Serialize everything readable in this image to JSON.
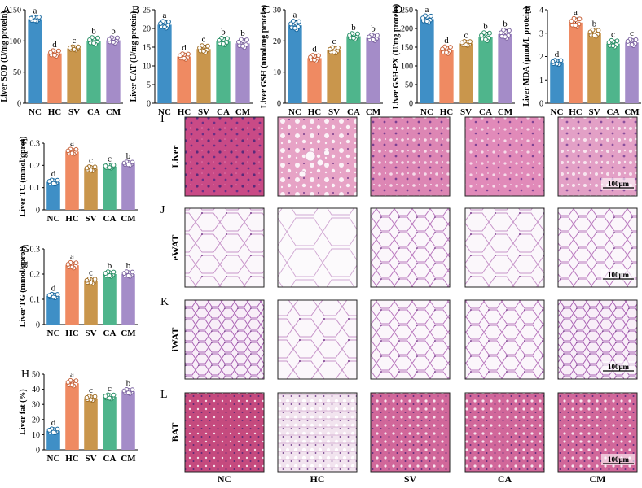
{
  "groups": [
    "NC",
    "HC",
    "SV",
    "CA",
    "CM"
  ],
  "group_colors": [
    "#3f8fc6",
    "#ef8a62",
    "#c9964c",
    "#4fb58c",
    "#a48cc8"
  ],
  "chart_data": [
    {
      "panel_label": "A",
      "type": "bar",
      "ylabel": "Liver SOD (U/mg protein)",
      "ylim": [
        0,
        150
      ],
      "yticks": [
        0,
        50,
        100,
        150
      ],
      "categories": [
        "NC",
        "HC",
        "SV",
        "CA",
        "CM"
      ],
      "values": [
        135,
        80,
        88,
        100,
        101
      ],
      "errors": [
        4,
        5,
        3,
        6,
        5
      ],
      "letters": [
        "a",
        "d",
        "c",
        "b",
        "b"
      ]
    },
    {
      "panel_label": "B",
      "type": "bar",
      "ylabel": "Liver CAT (U/mg protein)",
      "ylim": [
        0,
        25
      ],
      "yticks": [
        0,
        5,
        10,
        15,
        20,
        25
      ],
      "categories": [
        "NC",
        "HC",
        "SV",
        "CA",
        "CM"
      ],
      "values": [
        21,
        12.5,
        14.5,
        16.5,
        16
      ],
      "errors": [
        1,
        0.8,
        1,
        1,
        1.2
      ],
      "letters": [
        "a",
        "d",
        "c",
        "b",
        "b"
      ]
    },
    {
      "panel_label": "C",
      "type": "bar",
      "ylabel": "Liver GSH (nmol/mg protein)",
      "ylim": [
        0,
        30
      ],
      "yticks": [
        0,
        10,
        20,
        30
      ],
      "categories": [
        "NC",
        "HC",
        "SV",
        "CA",
        "CM"
      ],
      "values": [
        25,
        14.5,
        17,
        21.5,
        21
      ],
      "errors": [
        1.5,
        1,
        1,
        1,
        1
      ],
      "letters": [
        "a",
        "d",
        "c",
        "b",
        "b"
      ]
    },
    {
      "panel_label": "D",
      "type": "bar",
      "ylabel": "Liver GSH-PX (U/mg protein)",
      "ylim": [
        0,
        250
      ],
      "yticks": [
        0,
        50,
        100,
        150,
        200,
        250
      ],
      "categories": [
        "NC",
        "HC",
        "SV",
        "CA",
        "CM"
      ],
      "values": [
        225,
        142,
        160,
        178,
        185
      ],
      "errors": [
        10,
        10,
        6,
        12,
        12
      ],
      "letters": [
        "a",
        "d",
        "c",
        "b",
        "b"
      ]
    },
    {
      "panel_label": "E",
      "type": "bar",
      "ylabel": "Liver MDA (µmol/L protein)",
      "ylim": [
        0,
        4
      ],
      "yticks": [
        0,
        1,
        2,
        3,
        4
      ],
      "categories": [
        "NC",
        "HC",
        "SV",
        "CA",
        "CM"
      ],
      "values": [
        1.75,
        3.45,
        3.0,
        2.55,
        2.6
      ],
      "errors": [
        0.1,
        0.2,
        0.15,
        0.15,
        0.15
      ],
      "letters": [
        "d",
        "a",
        "b",
        "c",
        "c"
      ]
    },
    {
      "panel_label": "F",
      "type": "bar",
      "ylabel": "Liver TC (mmol/gprot)",
      "ylim": [
        0,
        0.3
      ],
      "yticks": [
        0,
        0.1,
        0.2,
        0.3
      ],
      "categories": [
        "NC",
        "HC",
        "SV",
        "CA",
        "CM"
      ],
      "values": [
        0.125,
        0.262,
        0.185,
        0.195,
        0.208
      ],
      "errors": [
        0.01,
        0.012,
        0.01,
        0.008,
        0.008
      ],
      "letters": [
        "d",
        "a",
        "c",
        "c",
        "b"
      ]
    },
    {
      "panel_label": "G",
      "type": "bar",
      "ylabel": "Liver TG (mmol/gprot)",
      "ylim": [
        0,
        0.3
      ],
      "yticks": [
        0,
        0.1,
        0.2,
        0.3
      ],
      "categories": [
        "NC",
        "HC",
        "SV",
        "CA",
        "CM"
      ],
      "values": [
        0.113,
        0.235,
        0.172,
        0.2,
        0.2
      ],
      "errors": [
        0.008,
        0.012,
        0.01,
        0.01,
        0.01
      ],
      "letters": [
        "d",
        "a",
        "c",
        "b",
        "b"
      ]
    },
    {
      "panel_label": "H",
      "type": "bar",
      "ylabel": "Liver fat (%)",
      "ylim": [
        0,
        50
      ],
      "yticks": [
        0,
        10,
        20,
        30,
        40,
        50
      ],
      "categories": [
        "NC",
        "HC",
        "SV",
        "CA",
        "CM"
      ],
      "values": [
        12.5,
        44,
        34,
        35,
        38.5
      ],
      "errors": [
        1.5,
        2,
        1.5,
        1.5,
        1.5
      ],
      "letters": [
        "d",
        "a",
        "c",
        "c",
        "b"
      ]
    }
  ],
  "histology": {
    "panel_labels": [
      "I",
      "J",
      "K",
      "L"
    ],
    "tissues": [
      "Liver",
      "eWAT",
      "iWAT",
      "BAT"
    ],
    "columns": [
      "NC",
      "HC",
      "SV",
      "CA",
      "CM"
    ],
    "scale_bar": "100μm"
  }
}
